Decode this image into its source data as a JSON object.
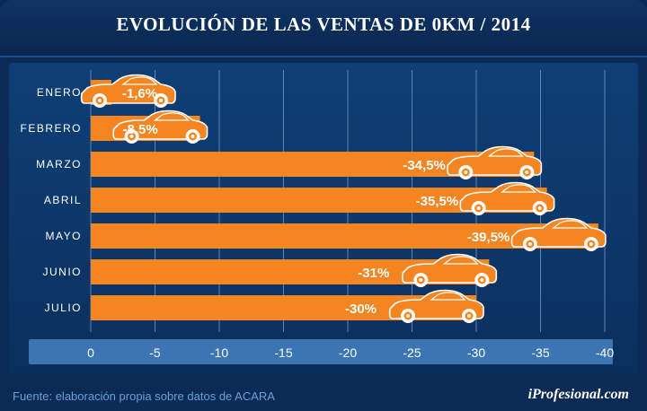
{
  "title": "EVOLUCIÓN DE LAS VENTAS DE 0KM   / 2014",
  "footer": {
    "source": "Fuente: elaboración propia sobre datos de ACARA",
    "brand": "iProfesional.com"
  },
  "colors": {
    "background": "#0b2a55",
    "panel": "#0d3a6e",
    "bar": "#f48520",
    "axis_band": "#3d74b3",
    "grid": "#7ea6d6",
    "text": "#ffffff"
  },
  "chart_data": {
    "type": "bar",
    "orientation": "horizontal",
    "title": "EVOLUCIÓN DE LAS VENTAS DE 0KM   / 2014",
    "categories": [
      "ENERO",
      "FEBRERO",
      "MARZO",
      "ABRIL",
      "MAYO",
      "JUNIO",
      "JULIO"
    ],
    "values": [
      -1.6,
      -8.5,
      -34.5,
      -35.5,
      -39.5,
      -31,
      -30
    ],
    "value_labels": [
      "-1,6%",
      "-8,5%",
      "-34,5%",
      "-35,5%",
      "-39,5%",
      "-31%",
      "-30%"
    ],
    "x_ticks": [
      0,
      -5,
      -10,
      -15,
      -20,
      -25,
      -30,
      -35,
      -40
    ],
    "x_tick_labels": [
      "0",
      "-5",
      "-10",
      "-15",
      "-20",
      "-25",
      "-30",
      "-35",
      "-40"
    ],
    "xlim": [
      0,
      -40
    ],
    "grid": true,
    "xlabel": "",
    "ylabel": "",
    "bar_icon": "car-icon"
  }
}
